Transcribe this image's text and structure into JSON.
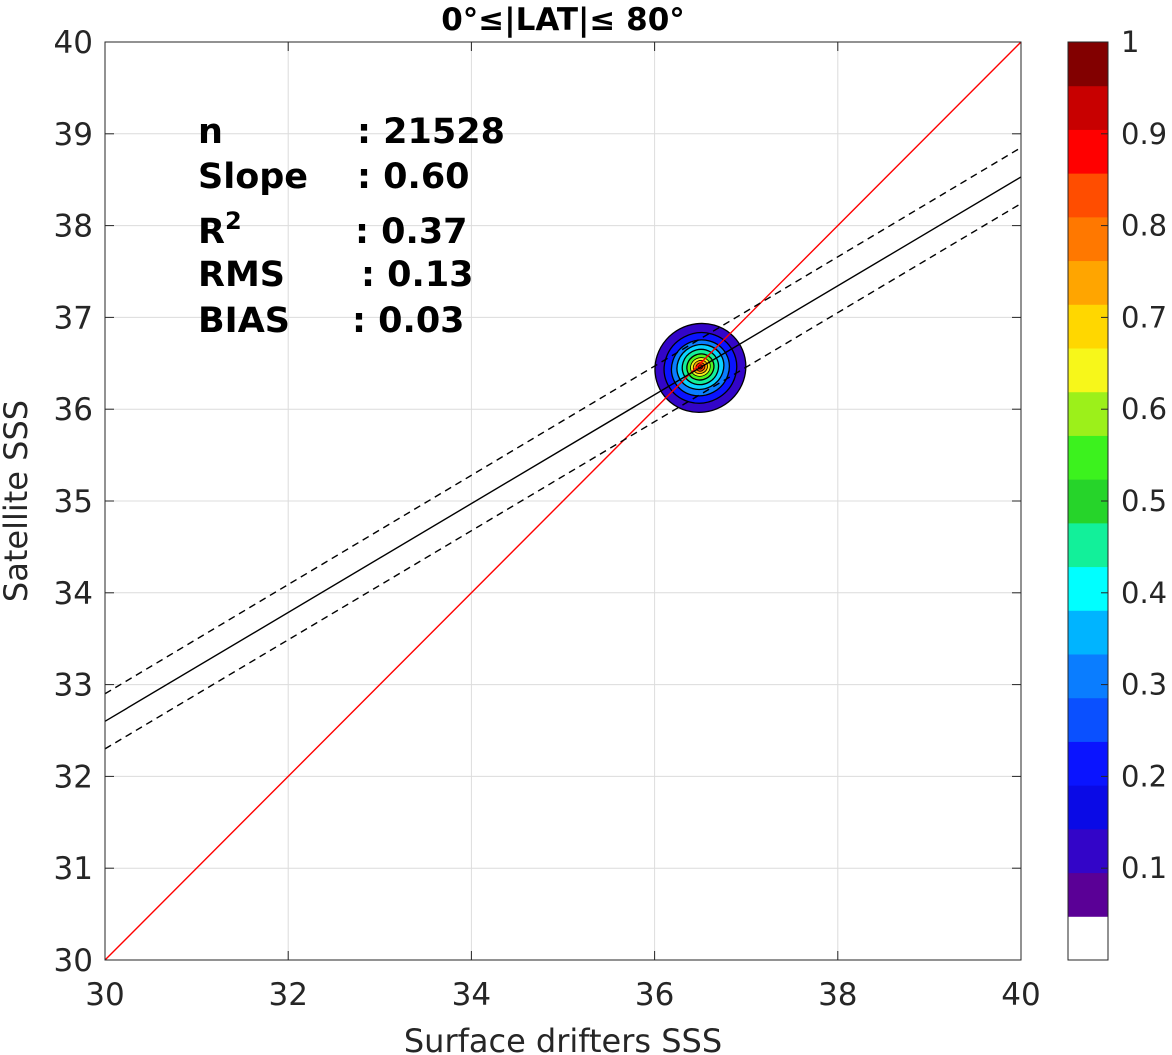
{
  "chart_data": {
    "type": "scatter",
    "subtype": "density-contour",
    "title": "0°≤|LAT|≤ 80°",
    "xlabel": "Surface drifters SSS",
    "ylabel": "Satellite SSS",
    "xlim": [
      30,
      40
    ],
    "ylim": [
      30,
      40
    ],
    "xticks": [
      "30",
      "32",
      "34",
      "36",
      "38",
      "40"
    ],
    "yticks": [
      "30",
      "31",
      "32",
      "33",
      "34",
      "35",
      "36",
      "37",
      "38",
      "39",
      "40"
    ],
    "grid": true,
    "stats": [
      {
        "label": "n",
        "value": ": 21528"
      },
      {
        "label": "Slope",
        "value": ": 0.60"
      },
      {
        "label": "R",
        "sup": "2",
        "value": ": 0.37"
      },
      {
        "label": "RMS",
        "value": ": 0.13"
      },
      {
        "label": "BIAS",
        "value": ": 0.03"
      }
    ],
    "lines": [
      {
        "role": "one-to-one",
        "color": "#ff0000",
        "dash": "solid",
        "points": [
          [
            30,
            30
          ],
          [
            40,
            40
          ]
        ]
      },
      {
        "role": "regression",
        "color": "#000000",
        "dash": "solid",
        "points": [
          [
            30,
            32.6
          ],
          [
            40,
            38.53
          ]
        ]
      },
      {
        "role": "regression-upper",
        "color": "#000000",
        "dash": "dashed",
        "points": [
          [
            30,
            32.9
          ],
          [
            40,
            38.85
          ]
        ]
      },
      {
        "role": "regression-lower",
        "color": "#000000",
        "dash": "dashed",
        "points": [
          [
            30,
            32.3
          ],
          [
            40,
            38.24
          ]
        ]
      }
    ],
    "density_peak": {
      "x": 36.5,
      "y": 36.45
    },
    "contour_levels": [
      0.05,
      0.15,
      0.25,
      0.35,
      0.45,
      0.55,
      0.65,
      0.75,
      0.85,
      0.95
    ],
    "contours": [
      {
        "level": 0.05,
        "color": "#3305c8",
        "cx": 36.5,
        "cy": 36.45,
        "rx": 0.5,
        "ry": 0.48
      },
      {
        "level": 0.15,
        "color": "#0a14ff",
        "cx": 36.5,
        "cy": 36.45,
        "rx": 0.4,
        "ry": 0.38
      },
      {
        "level": 0.25,
        "color": "#0a7dff",
        "cx": 36.5,
        "cy": 36.45,
        "rx": 0.32,
        "ry": 0.3
      },
      {
        "level": 0.35,
        "color": "#0ad2ff",
        "cx": 36.5,
        "cy": 36.46,
        "rx": 0.26,
        "ry": 0.24
      },
      {
        "level": 0.45,
        "color": "#12f09a",
        "cx": 36.5,
        "cy": 36.46,
        "rx": 0.2,
        "ry": 0.19
      },
      {
        "level": 0.55,
        "color": "#4ef41e",
        "cx": 36.5,
        "cy": 36.46,
        "rx": 0.15,
        "ry": 0.14
      },
      {
        "level": 0.65,
        "color": "#f2f21a",
        "cx": 36.5,
        "cy": 36.46,
        "rx": 0.11,
        "ry": 0.1
      },
      {
        "level": 0.75,
        "color": "#ffa500",
        "cx": 36.5,
        "cy": 36.46,
        "rx": 0.08,
        "ry": 0.07
      },
      {
        "level": 0.85,
        "color": "#ff4d00",
        "cx": 36.5,
        "cy": 36.46,
        "rx": 0.05,
        "ry": 0.045
      },
      {
        "level": 0.95,
        "color": "#c80000",
        "cx": 36.5,
        "cy": 36.46,
        "rx": 0.025,
        "ry": 0.022
      }
    ],
    "colorbar": {
      "range": [
        0,
        1
      ],
      "ticks": [
        "0.1",
        "0.2",
        "0.3",
        "0.4",
        "0.5",
        "0.6",
        "0.7",
        "0.8",
        "0.9",
        "1"
      ],
      "colors": [
        "#ffffff",
        "#5a0096",
        "#3305c8",
        "#0a0ae6",
        "#0a14ff",
        "#0a50ff",
        "#0a7dff",
        "#00b4ff",
        "#00ffff",
        "#12f09a",
        "#26d42a",
        "#3cf21e",
        "#9cf01a",
        "#f7f71a",
        "#ffd700",
        "#ffa500",
        "#ff7800",
        "#ff4d00",
        "#ff0000",
        "#c80000",
        "#820000"
      ]
    }
  }
}
